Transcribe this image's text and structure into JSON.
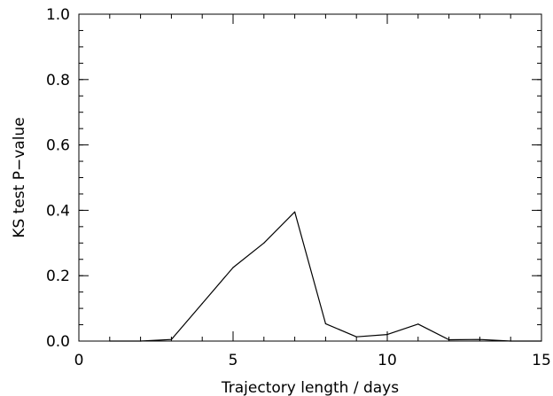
{
  "chart_data": {
    "type": "line",
    "title": "",
    "xlabel": "Trajectory length / days",
    "ylabel": "KS test P−value",
    "xlim": [
      0,
      15
    ],
    "ylim": [
      0,
      1.0
    ],
    "x_ticks": [
      {
        "value": 0,
        "label": "0"
      },
      {
        "value": 5,
        "label": "5"
      },
      {
        "value": 10,
        "label": "10"
      },
      {
        "value": 15,
        "label": "15"
      }
    ],
    "y_ticks": [
      {
        "value": 0.0,
        "label": "0.0"
      },
      {
        "value": 0.2,
        "label": "0.2"
      },
      {
        "value": 0.4,
        "label": "0.4"
      },
      {
        "value": 0.6,
        "label": "0.6"
      },
      {
        "value": 0.8,
        "label": "0.8"
      },
      {
        "value": 1.0,
        "label": "1.0"
      }
    ],
    "x_minor_step": 1,
    "y_minor_step": 0.05,
    "grid": false,
    "legend": "none",
    "line_color": "#000000",
    "series": [
      {
        "x": [
          1,
          2,
          3,
          4,
          5,
          6,
          7,
          8,
          9,
          10,
          11,
          12,
          13,
          14,
          15
        ],
        "y": [
          0.0,
          0.0,
          0.005,
          0.115,
          0.225,
          0.3,
          0.395,
          0.053,
          0.013,
          0.02,
          0.052,
          0.004,
          0.005,
          0.0,
          0.0
        ]
      }
    ]
  }
}
